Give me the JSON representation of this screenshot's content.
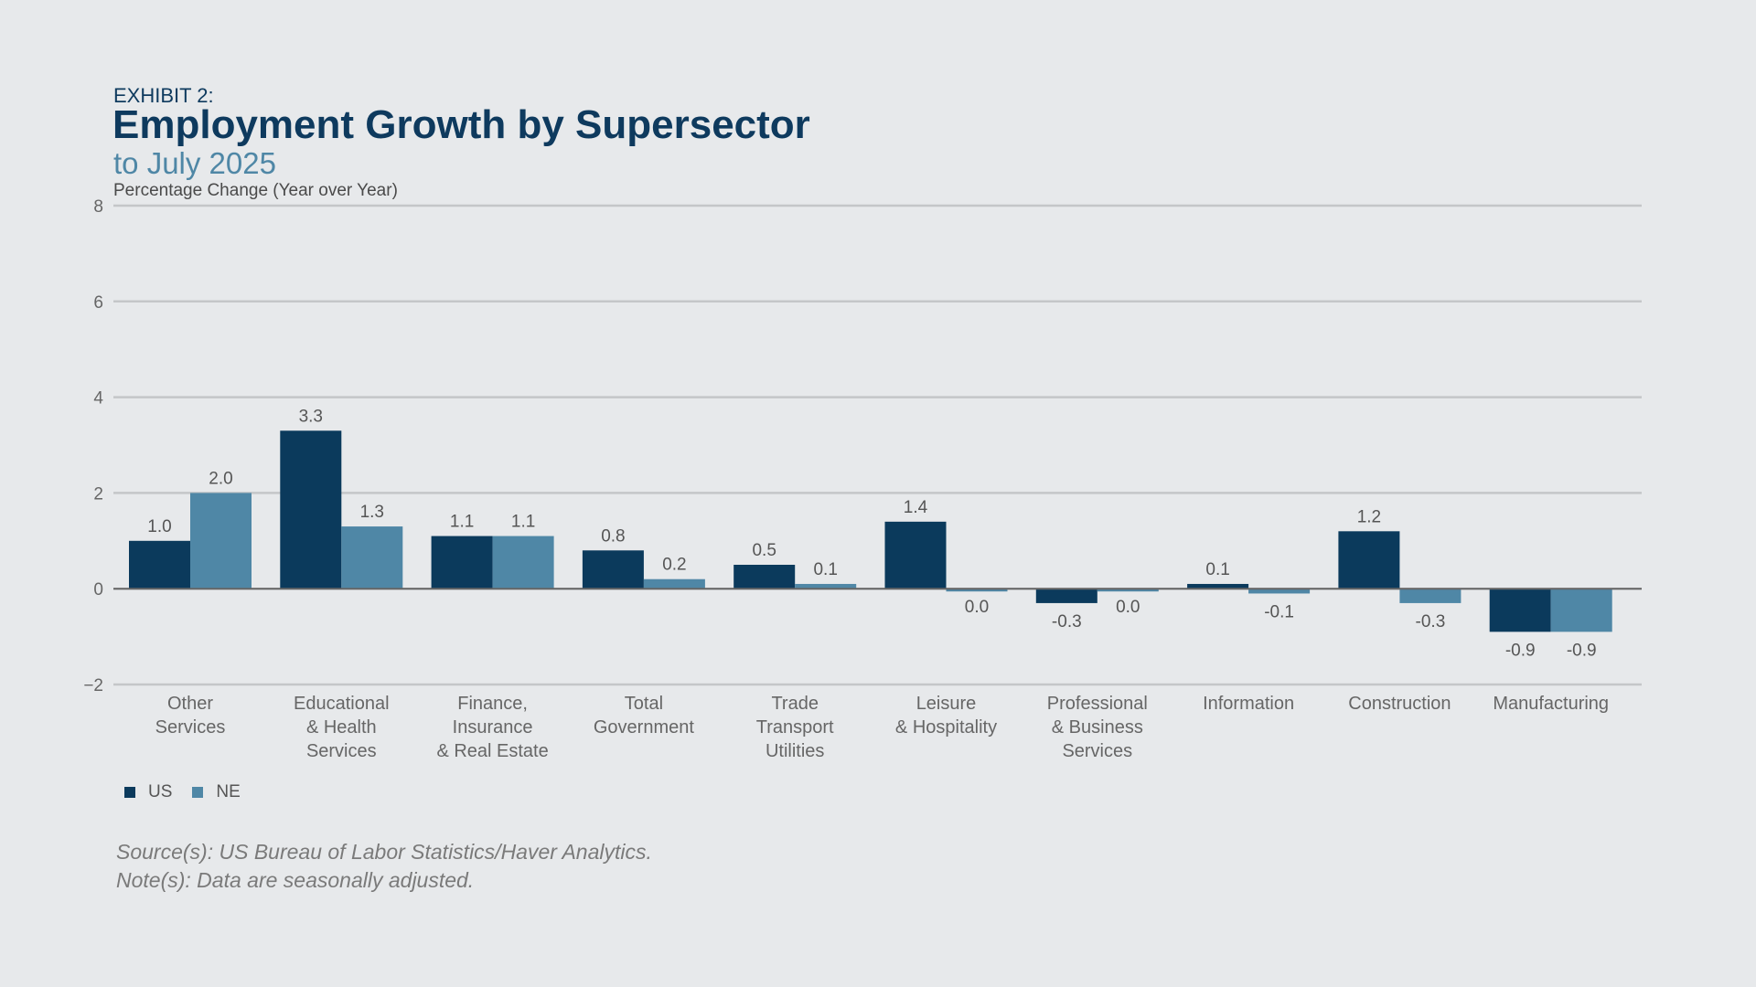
{
  "header": {
    "exhibit": "EXHIBIT 2:",
    "title": "Employment Growth by Supersector",
    "subtitle": "to July 2025",
    "ylabel": "Percentage Change (Year over Year)"
  },
  "footer": {
    "source": "Source(s): US Bureau of Labor Statistics/Haver Analytics.",
    "note": "Note(s): Data are seasonally adjusted."
  },
  "chart_data": {
    "type": "bar",
    "title": "Employment Growth by Supersector",
    "subtitle": "to July 2025",
    "ylabel": "Percentage Change (Year over Year)",
    "xlabel": "",
    "ylim": [
      -2,
      8
    ],
    "yticks": [
      -2,
      0,
      2,
      4,
      6,
      8
    ],
    "ytick_labels": [
      "−2",
      "0",
      "2",
      "4",
      "6",
      "8"
    ],
    "grid": true,
    "legend_position": "bottom-left",
    "categories": [
      [
        "Other",
        "Services"
      ],
      [
        "Educational",
        "& Health",
        "Services"
      ],
      [
        "Finance,",
        "Insurance",
        "& Real Estate"
      ],
      [
        "Total",
        "Government"
      ],
      [
        "Trade",
        "Transport",
        "Utilities"
      ],
      [
        "Leisure",
        "& Hospitality"
      ],
      [
        "Professional",
        "& Business",
        "Services"
      ],
      [
        "Information"
      ],
      [
        "Construction"
      ],
      [
        "Manufacturing"
      ]
    ],
    "series": [
      {
        "name": "US",
        "color": "#0b3a5c",
        "values": [
          1.0,
          3.3,
          1.1,
          0.8,
          0.5,
          1.4,
          -0.3,
          0.1,
          1.2,
          -0.9
        ],
        "labels": [
          "1.0",
          "3.3",
          "1.1",
          "0.8",
          "0.5",
          "1.4",
          "-0.3",
          "0.1",
          "1.2",
          "-0.9"
        ]
      },
      {
        "name": "NE",
        "color": "#4f87a6",
        "values": [
          2.0,
          1.3,
          1.1,
          0.2,
          0.1,
          0.0,
          0.0,
          -0.1,
          -0.3,
          -0.9
        ],
        "labels": [
          "2.0",
          "1.3",
          "1.1",
          "0.2",
          "0.1",
          "0.0",
          "0.0",
          "-0.1",
          "-0.3",
          "-0.9"
        ]
      }
    ]
  }
}
